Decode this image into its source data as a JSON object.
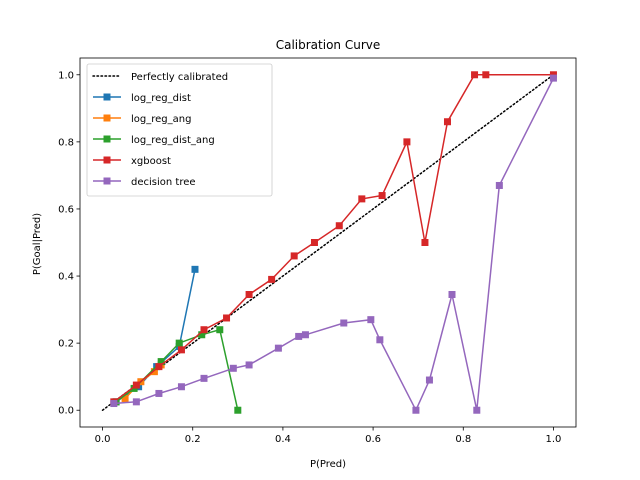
{
  "chart_data": {
    "type": "line",
    "title": "Calibration Curve",
    "xlabel": "P(Pred)",
    "ylabel": "P(Goal|Pred)",
    "xlim": [
      -0.05,
      1.05
    ],
    "ylim": [
      -0.05,
      1.05
    ],
    "xticks": [
      "0.0",
      "0.2",
      "0.4",
      "0.6",
      "0.8",
      "1.0"
    ],
    "yticks": [
      "0.0",
      "0.2",
      "0.4",
      "0.6",
      "0.8",
      "1.0"
    ],
    "grid": false,
    "legend_position": "upper-left",
    "reference": {
      "name": "Perfectly calibrated",
      "x": [
        0,
        1
      ],
      "y": [
        0,
        1
      ],
      "color": "#000000",
      "style": "dotted"
    },
    "series": [
      {
        "name": "log_reg_dist",
        "color": "#1f77b4",
        "x": [
          0.03,
          0.08,
          0.12,
          0.17,
          0.205
        ],
        "y": [
          0.025,
          0.07,
          0.13,
          0.19,
          0.42
        ]
      },
      {
        "name": "log_reg_ang",
        "color": "#ff7f0e",
        "x": [
          0.05,
          0.085,
          0.115,
          0.13
        ],
        "y": [
          0.035,
          0.085,
          0.115,
          0.135
        ]
      },
      {
        "name": "log_reg_dist_ang",
        "color": "#2ca02c",
        "x": [
          0.03,
          0.07,
          0.13,
          0.17,
          0.22,
          0.26,
          0.3
        ],
        "y": [
          0.025,
          0.065,
          0.145,
          0.2,
          0.225,
          0.24,
          0.0
        ]
      },
      {
        "name": "xgboost",
        "color": "#d62728",
        "x": [
          0.025,
          0.075,
          0.125,
          0.175,
          0.225,
          0.275,
          0.325,
          0.375,
          0.425,
          0.47,
          0.525,
          0.575,
          0.62,
          0.675,
          0.715,
          0.765,
          0.825,
          0.85,
          1.0
        ],
        "y": [
          0.025,
          0.075,
          0.13,
          0.18,
          0.24,
          0.275,
          0.345,
          0.39,
          0.46,
          0.5,
          0.55,
          0.63,
          0.64,
          0.8,
          0.5,
          0.86,
          1.0,
          1.0,
          1.0
        ]
      },
      {
        "name": "decision tree",
        "color": "#9467bd",
        "x": [
          0.025,
          0.075,
          0.125,
          0.175,
          0.225,
          0.29,
          0.325,
          0.39,
          0.435,
          0.45,
          0.535,
          0.595,
          0.615,
          0.695,
          0.725,
          0.775,
          0.83,
          0.88,
          1.0
        ],
        "y": [
          0.02,
          0.025,
          0.05,
          0.07,
          0.095,
          0.125,
          0.135,
          0.185,
          0.22,
          0.225,
          0.26,
          0.27,
          0.21,
          0.0,
          0.09,
          0.345,
          0.0,
          0.67,
          0.99
        ]
      }
    ]
  }
}
